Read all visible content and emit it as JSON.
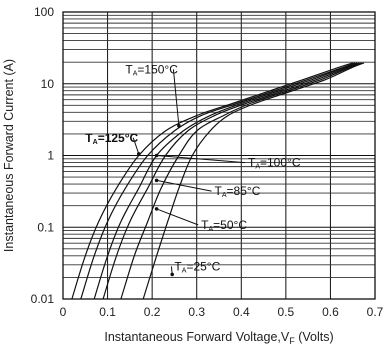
{
  "chart_data": {
    "type": "line",
    "title": "",
    "xlabel": "Instantaneous Forward Voltage,V",
    "xlabel_sub": "F",
    "xlabel_unit": " (Volts)",
    "ylabel": "Instantaneous Forward Current (A)",
    "xlim": [
      0,
      0.7
    ],
    "ylim": [
      0.01,
      100
    ],
    "y_scale": "log",
    "grid": true,
    "x_ticks": [
      "0",
      "0.1",
      "0.2",
      "0.3",
      "0.4",
      "0.5",
      "0.6",
      "0.7"
    ],
    "y_ticks": [
      "0.01",
      "0.1",
      "1",
      "10",
      "100"
    ],
    "series": [
      {
        "name": "T_A=150°C",
        "label_main": "T",
        "label_sub": "A",
        "label_rest": "=150°C",
        "bold": false,
        "points": [
          [
            0.02,
            0.01
          ],
          [
            0.05,
            0.04
          ],
          [
            0.08,
            0.12
          ],
          [
            0.12,
            0.35
          ],
          [
            0.17,
            1.0
          ],
          [
            0.23,
            2.2
          ],
          [
            0.3,
            3.6
          ],
          [
            0.38,
            5.3
          ],
          [
            0.46,
            7.8
          ],
          [
            0.54,
            11.5
          ],
          [
            0.62,
            17.0
          ],
          [
            0.65,
            19.5
          ]
        ]
      },
      {
        "name": "T_A=125°C",
        "label_main": "T",
        "label_sub": "A",
        "label_rest": "=125°C",
        "bold": true,
        "points": [
          [
            0.04,
            0.01
          ],
          [
            0.07,
            0.04
          ],
          [
            0.1,
            0.12
          ],
          [
            0.14,
            0.35
          ],
          [
            0.19,
            1.0
          ],
          [
            0.25,
            2.2
          ],
          [
            0.31,
            3.6
          ],
          [
            0.39,
            5.3
          ],
          [
            0.47,
            7.8
          ],
          [
            0.55,
            11.5
          ],
          [
            0.63,
            17.0
          ],
          [
            0.655,
            19.5
          ]
        ]
      },
      {
        "name": "T_A=100°C",
        "label_main": "T",
        "label_sub": "A",
        "label_rest": "=100°C",
        "bold": false,
        "points": [
          [
            0.07,
            0.01
          ],
          [
            0.1,
            0.04
          ],
          [
            0.13,
            0.12
          ],
          [
            0.17,
            0.35
          ],
          [
            0.21,
            1.0
          ],
          [
            0.27,
            2.2
          ],
          [
            0.33,
            3.6
          ],
          [
            0.4,
            5.3
          ],
          [
            0.48,
            7.8
          ],
          [
            0.56,
            11.5
          ],
          [
            0.635,
            17.0
          ],
          [
            0.66,
            19.5
          ]
        ]
      },
      {
        "name": "T_A=85°C",
        "label_main": "T",
        "label_sub": "A",
        "label_rest": "=85°C",
        "bold": false,
        "points": [
          [
            0.09,
            0.01
          ],
          [
            0.12,
            0.04
          ],
          [
            0.15,
            0.12
          ],
          [
            0.19,
            0.35
          ],
          [
            0.23,
            1.0
          ],
          [
            0.28,
            2.2
          ],
          [
            0.34,
            3.6
          ],
          [
            0.41,
            5.3
          ],
          [
            0.49,
            7.8
          ],
          [
            0.57,
            11.5
          ],
          [
            0.64,
            17.0
          ],
          [
            0.665,
            19.5
          ]
        ]
      },
      {
        "name": "T_A=50°C",
        "label_main": "T",
        "label_sub": "A",
        "label_rest": "=50°C",
        "bold": false,
        "points": [
          [
            0.13,
            0.01
          ],
          [
            0.16,
            0.04
          ],
          [
            0.19,
            0.12
          ],
          [
            0.22,
            0.35
          ],
          [
            0.26,
            1.0
          ],
          [
            0.3,
            2.2
          ],
          [
            0.36,
            3.6
          ],
          [
            0.42,
            5.3
          ],
          [
            0.5,
            7.8
          ],
          [
            0.58,
            11.5
          ],
          [
            0.645,
            17.0
          ],
          [
            0.67,
            19.5
          ]
        ]
      },
      {
        "name": "T_A=25°C",
        "label_main": "T",
        "label_sub": "A",
        "label_rest": "=25°C",
        "bold": false,
        "points": [
          [
            0.18,
            0.01
          ],
          [
            0.21,
            0.04
          ],
          [
            0.235,
            0.12
          ],
          [
            0.26,
            0.35
          ],
          [
            0.29,
            1.0
          ],
          [
            0.33,
            2.2
          ],
          [
            0.37,
            3.6
          ],
          [
            0.43,
            5.3
          ],
          [
            0.51,
            7.8
          ],
          [
            0.59,
            11.5
          ],
          [
            0.65,
            17.0
          ],
          [
            0.675,
            19.5
          ]
        ]
      }
    ],
    "annotations": [
      {
        "series": 0,
        "at": [
          0.14,
          14.0
        ],
        "arrow_to": [
          0.26,
          2.6
        ],
        "anchor": "start"
      },
      {
        "series": 1,
        "at": [
          0.05,
          1.55
        ],
        "arrow_to": [
          0.17,
          1.05
        ],
        "anchor": "start"
      },
      {
        "series": 2,
        "at": [
          0.415,
          0.7
        ],
        "arrow_to": [
          0.21,
          1.0
        ],
        "anchor": "start"
      },
      {
        "series": 3,
        "at": [
          0.34,
          0.28
        ],
        "arrow_to": [
          0.21,
          0.45
        ],
        "anchor": "start"
      },
      {
        "series": 4,
        "at": [
          0.31,
          0.095
        ],
        "arrow_to": [
          0.21,
          0.18
        ],
        "anchor": "start"
      },
      {
        "series": 5,
        "at": [
          0.25,
          0.025
        ],
        "arrow_to": [
          0.245,
          0.022
        ],
        "anchor": "start"
      }
    ]
  }
}
